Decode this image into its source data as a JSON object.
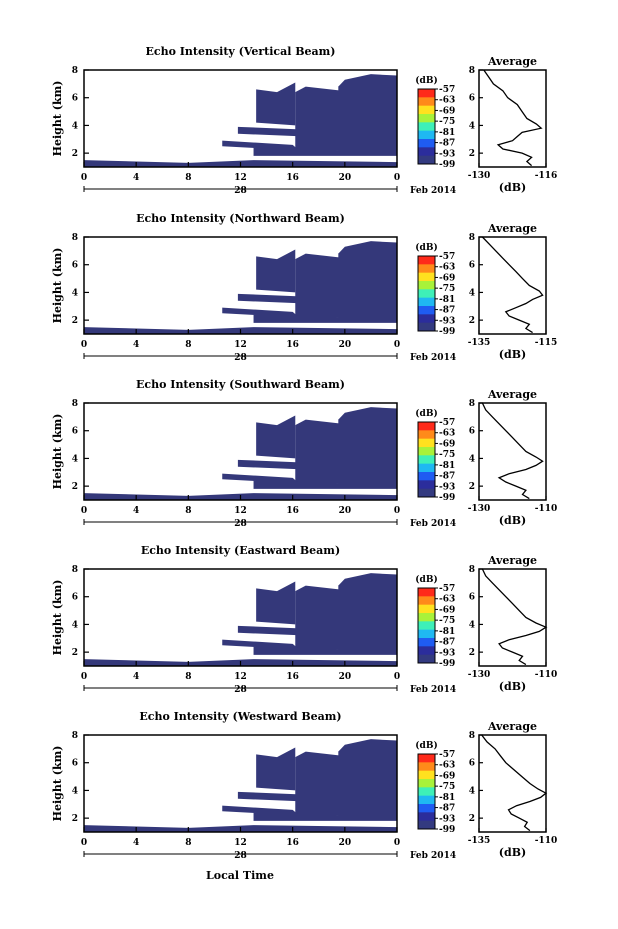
{
  "figure": {
    "xlabel": "Local Time",
    "month_label": "Feb 2014",
    "colorbar_unit": "(dB)",
    "colorbar_ticks": [
      "-57",
      "-63",
      "-69",
      "-75",
      "-81",
      "-87",
      "-93",
      "-99"
    ],
    "colorbar_colors": [
      "#ff2a1a",
      "#ff8a1a",
      "#ffe11f",
      "#a8f23a",
      "#3ef0b8",
      "#1fb8f2",
      "#1f5cf2",
      "#2b2d9c",
      "#333a80"
    ],
    "fill_color": "#34387a",
    "profile_title": "Average",
    "profile_xlabel": "(dB)"
  },
  "chart_data": [
    {
      "type": "heatmap",
      "title": "Echo Intensity (Vertical Beam)",
      "ylabel": "Height (km)",
      "xlabel": "Local Time",
      "x_ticks": [
        "0",
        "4",
        "8",
        "12",
        "16",
        "20",
        "0"
      ],
      "date_label": "28",
      "month_label": "Feb 2014",
      "xlim": [
        0,
        24
      ],
      "ylim": [
        1,
        8
      ],
      "y_ticks": [
        "2",
        "4",
        "6",
        "8"
      ],
      "colorbar": {
        "unit": "(dB)",
        "range": [
          -99,
          -57
        ],
        "ticks": [
          -57,
          -63,
          -69,
          -75,
          -81,
          -87,
          -93,
          -99
        ]
      },
      "profile": {
        "title": "Average",
        "xlabel": "(dB)",
        "xlim": [
          -130,
          -116
        ],
        "x_ticks": [
          "-130",
          "-116"
        ],
        "y_ticks": [
          "2",
          "4",
          "6",
          "8"
        ],
        "heights": [
          1.1,
          1.4,
          1.7,
          2.0,
          2.3,
          2.6,
          2.9,
          3.2,
          3.5,
          3.8,
          4.1,
          4.5,
          5.0,
          5.5,
          6.0,
          6.5,
          7.0,
          7.5,
          8.0
        ],
        "values": [
          -119,
          -120,
          -119,
          -121,
          -125,
          -126,
          -123,
          -122,
          -121,
          -117,
          -118,
          -120,
          -121,
          -122,
          -124,
          -125,
          -127,
          -128,
          -129
        ]
      }
    },
    {
      "type": "heatmap",
      "title": "Echo Intensity (Northward Beam)",
      "ylabel": "Height (km)",
      "xlabel": "Local Time",
      "x_ticks": [
        "0",
        "4",
        "8",
        "12",
        "16",
        "20",
        "0"
      ],
      "date_label": "28",
      "month_label": "Feb 2014",
      "xlim": [
        0,
        24
      ],
      "ylim": [
        1,
        8
      ],
      "y_ticks": [
        "2",
        "4",
        "6",
        "8"
      ],
      "colorbar": {
        "unit": "(dB)",
        "range": [
          -99,
          -57
        ],
        "ticks": [
          -57,
          -63,
          -69,
          -75,
          -81,
          -87,
          -93,
          -99
        ]
      },
      "profile": {
        "title": "Average",
        "xlabel": "(dB)",
        "xlim": [
          -135,
          -115
        ],
        "x_ticks": [
          "-135",
          "-115"
        ],
        "y_ticks": [
          "2",
          "4",
          "6",
          "8"
        ],
        "heights": [
          1.1,
          1.4,
          1.7,
          2.0,
          2.3,
          2.6,
          2.9,
          3.2,
          3.5,
          3.8,
          4.1,
          4.5,
          5.0,
          5.5,
          6.0,
          6.5,
          7.0,
          7.5,
          8.0
        ],
        "values": [
          -119,
          -121,
          -120,
          -123,
          -126,
          -127,
          -124,
          -121,
          -119,
          -116,
          -117,
          -120,
          -122,
          -124,
          -126,
          -128,
          -130,
          -132,
          -134
        ]
      }
    },
    {
      "type": "heatmap",
      "title": "Echo Intensity (Southward Beam)",
      "ylabel": "Height (km)",
      "xlabel": "Local Time",
      "x_ticks": [
        "0",
        "4",
        "8",
        "12",
        "16",
        "20",
        "0"
      ],
      "date_label": "28",
      "month_label": "Feb 2014",
      "xlim": [
        0,
        24
      ],
      "ylim": [
        1,
        8
      ],
      "y_ticks": [
        "2",
        "4",
        "6",
        "8"
      ],
      "colorbar": {
        "unit": "(dB)",
        "range": [
          -99,
          -57
        ],
        "ticks": [
          -57,
          -63,
          -69,
          -75,
          -81,
          -87,
          -93,
          -99
        ]
      },
      "profile": {
        "title": "Average",
        "xlabel": "(dB)",
        "xlim": [
          -130,
          -110
        ],
        "x_ticks": [
          "-130",
          "-110"
        ],
        "y_ticks": [
          "2",
          "4",
          "6",
          "8"
        ],
        "heights": [
          1.1,
          1.4,
          1.7,
          2.0,
          2.3,
          2.6,
          2.9,
          3.2,
          3.5,
          3.8,
          4.1,
          4.5,
          5.0,
          5.5,
          6.0,
          6.5,
          7.0,
          7.5,
          8.0
        ],
        "values": [
          -115,
          -117,
          -116,
          -119,
          -122,
          -124,
          -121,
          -116,
          -113,
          -111,
          -113,
          -116,
          -118,
          -120,
          -122,
          -124,
          -126,
          -128,
          -129
        ]
      }
    },
    {
      "type": "heatmap",
      "title": "Echo Intensity (Eastward Beam)",
      "ylabel": "Height (km)",
      "xlabel": "Local Time",
      "x_ticks": [
        "0",
        "4",
        "8",
        "12",
        "16",
        "20",
        "0"
      ],
      "date_label": "28",
      "month_label": "Feb 2014",
      "xlim": [
        0,
        24
      ],
      "ylim": [
        1,
        8
      ],
      "y_ticks": [
        "2",
        "4",
        "6",
        "8"
      ],
      "colorbar": {
        "unit": "(dB)",
        "range": [
          -99,
          -57
        ],
        "ticks": [
          -57,
          -63,
          -69,
          -75,
          -81,
          -87,
          -93,
          -99
        ]
      },
      "profile": {
        "title": "Average",
        "xlabel": "(dB)",
        "xlim": [
          -130,
          -110
        ],
        "x_ticks": [
          "-130",
          "-110"
        ],
        "y_ticks": [
          "2",
          "4",
          "6",
          "8"
        ],
        "heights": [
          1.1,
          1.4,
          1.7,
          2.0,
          2.3,
          2.6,
          2.9,
          3.2,
          3.5,
          3.8,
          4.1,
          4.5,
          5.0,
          5.5,
          6.0,
          6.5,
          7.0,
          7.5,
          8.0
        ],
        "values": [
          -116,
          -118,
          -117,
          -120,
          -123,
          -124,
          -121,
          -116,
          -112,
          -110,
          -113,
          -116,
          -118,
          -120,
          -122,
          -124,
          -126,
          -128,
          -129
        ]
      }
    },
    {
      "type": "heatmap",
      "title": "Echo Intensity (Westward Beam)",
      "ylabel": "Height (km)",
      "xlabel": "Local Time",
      "x_ticks": [
        "0",
        "4",
        "8",
        "12",
        "16",
        "20",
        "0"
      ],
      "date_label": "28",
      "month_label": "Feb 2014",
      "xlim": [
        0,
        24
      ],
      "ylim": [
        1,
        8
      ],
      "y_ticks": [
        "2",
        "4",
        "6",
        "8"
      ],
      "colorbar": {
        "unit": "(dB)",
        "range": [
          -99,
          -57
        ],
        "ticks": [
          -57,
          -63,
          -69,
          -75,
          -81,
          -87,
          -93,
          -99
        ]
      },
      "profile": {
        "title": "Average",
        "xlabel": "(dB)",
        "xlim": [
          -135,
          -110
        ],
        "x_ticks": [
          "-135",
          "-110"
        ],
        "y_ticks": [
          "2",
          "4",
          "6",
          "8"
        ],
        "heights": [
          1.1,
          1.4,
          1.7,
          2.0,
          2.3,
          2.6,
          2.9,
          3.2,
          3.5,
          3.8,
          4.1,
          4.5,
          5.0,
          5.5,
          6.0,
          6.5,
          7.0,
          7.5,
          8.0
        ],
        "values": [
          -116,
          -118,
          -117,
          -120,
          -123,
          -124,
          -121,
          -116,
          -112,
          -110,
          -113,
          -116,
          -119,
          -122,
          -125,
          -127,
          -129,
          -132,
          -134
        ]
      }
    }
  ]
}
